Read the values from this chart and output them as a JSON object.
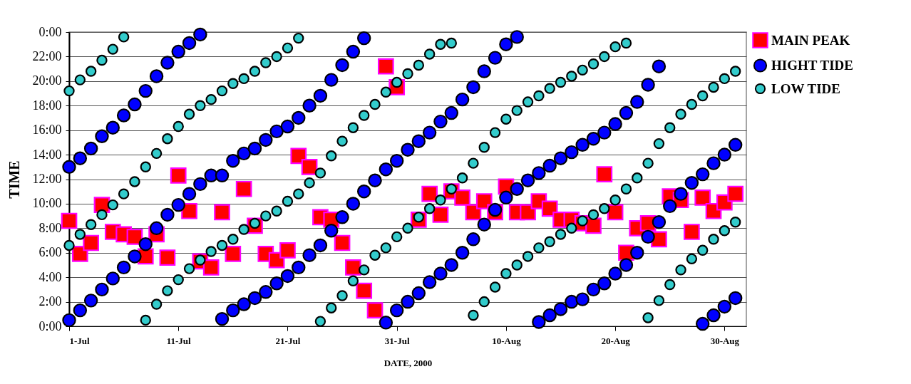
{
  "chart_data": {
    "type": "scatter",
    "xlabel": "DATE, 2000",
    "ylabel": "TIME",
    "legend": "top right",
    "grid": "y",
    "xlim": [
      "2000-07-01",
      "2000-09-01"
    ],
    "xticks": [
      {
        "value": "2000-07-01",
        "label": "1-Jul"
      },
      {
        "value": "2000-07-11",
        "label": "11-Jul"
      },
      {
        "value": "2000-07-21",
        "label": "21-Jul"
      },
      {
        "value": "2000-07-31",
        "label": "31-Jul"
      },
      {
        "value": "2000-08-10",
        "label": "10-Aug"
      },
      {
        "value": "2000-08-20",
        "label": "20-Aug"
      },
      {
        "value": "2000-08-30",
        "label": "30-Aug"
      }
    ],
    "ylim": [
      0,
      24
    ],
    "yticks": [
      {
        "value": 0,
        "label": "0:00"
      },
      {
        "value": 2,
        "label": "2:00"
      },
      {
        "value": 4,
        "label": "4:00"
      },
      {
        "value": 6,
        "label": "6:00"
      },
      {
        "value": 8,
        "label": "8:00"
      },
      {
        "value": 10,
        "label": "10:00"
      },
      {
        "value": 12,
        "label": "12:00"
      },
      {
        "value": 14,
        "label": "14:00"
      },
      {
        "value": 16,
        "label": "16:00"
      },
      {
        "value": 18,
        "label": "18:00"
      },
      {
        "value": 20,
        "label": "20:00"
      },
      {
        "value": 22,
        "label": "22:00"
      },
      {
        "value": 24,
        "label": "0:00"
      }
    ],
    "series": [
      {
        "name": "MAIN PEAK",
        "color": "#ff0000",
        "marker": "square",
        "x": [
          "2000-07-01",
          "2000-07-02",
          "2000-07-03",
          "2000-07-04",
          "2000-07-05",
          "2000-07-06",
          "2000-07-07",
          "2000-07-08",
          "2000-07-09",
          "2000-07-10",
          "2000-07-11",
          "2000-07-12",
          "2000-07-13",
          "2000-07-14",
          "2000-07-15",
          "2000-07-16",
          "2000-07-17",
          "2000-07-18",
          "2000-07-19",
          "2000-07-20",
          "2000-07-21",
          "2000-07-22",
          "2000-07-23",
          "2000-07-24",
          "2000-07-25",
          "2000-07-26",
          "2000-07-27",
          "2000-07-28",
          "2000-07-29",
          "2000-07-30",
          "2000-07-31",
          "2000-08-02",
          "2000-08-03",
          "2000-08-04",
          "2000-08-05",
          "2000-08-06",
          "2000-08-07",
          "2000-08-08",
          "2000-08-09",
          "2000-08-10",
          "2000-08-11",
          "2000-08-12",
          "2000-08-13",
          "2000-08-14",
          "2000-08-15",
          "2000-08-16",
          "2000-08-17",
          "2000-08-18",
          "2000-08-19",
          "2000-08-20",
          "2000-08-21",
          "2000-08-22",
          "2000-08-23",
          "2000-08-24",
          "2000-08-25",
          "2000-08-26",
          "2000-08-27",
          "2000-08-28",
          "2000-08-29",
          "2000-08-30",
          "2000-08-31"
        ],
        "values": [
          8.6,
          5.9,
          6.8,
          9.9,
          7.7,
          7.5,
          7.3,
          5.7,
          7.5,
          5.6,
          12.3,
          9.4,
          5.3,
          4.8,
          9.3,
          5.9,
          11.2,
          8.2,
          5.9,
          5.4,
          6.2,
          13.9,
          13.0,
          8.9,
          8.7,
          6.8,
          4.8,
          2.9,
          1.3,
          21.2,
          19.5,
          8.7,
          10.8,
          9.1,
          11.0,
          10.5,
          9.3,
          10.2,
          9.3,
          11.4,
          9.3,
          9.3,
          10.2,
          9.6,
          8.7,
          8.7,
          8.4,
          8.2,
          12.4,
          9.3,
          6.0,
          8.0,
          8.4,
          7.1,
          10.6,
          10.3,
          7.7,
          10.5,
          9.4,
          10.1,
          10.8
        ]
      },
      {
        "name": "HIGHT TIDE",
        "color": "#0000ff",
        "marker": "circle",
        "x": [
          "2000-07-01",
          "2000-07-02",
          "2000-07-03",
          "2000-07-04",
          "2000-07-05",
          "2000-07-06",
          "2000-07-07",
          "2000-07-08",
          "2000-07-09",
          "2000-07-10",
          "2000-07-11",
          "2000-07-12",
          "2000-07-13",
          "2000-07-14",
          "2000-07-15",
          "2000-07-16",
          "2000-07-17",
          "2000-07-18",
          "2000-07-19",
          "2000-07-20",
          "2000-07-21",
          "2000-07-22",
          "2000-07-23",
          "2000-07-24",
          "2000-07-25",
          "2000-07-26",
          "2000-07-27",
          "2000-07-28",
          "2000-07-01",
          "2000-07-02",
          "2000-07-03",
          "2000-07-04",
          "2000-07-05",
          "2000-07-06",
          "2000-07-07",
          "2000-07-08",
          "2000-07-09",
          "2000-07-10",
          "2000-07-11",
          "2000-07-12",
          "2000-07-13",
          "2000-07-15",
          "2000-07-16",
          "2000-07-17",
          "2000-07-18",
          "2000-07-19",
          "2000-07-20",
          "2000-07-21",
          "2000-07-22",
          "2000-07-23",
          "2000-07-24",
          "2000-07-25",
          "2000-07-26",
          "2000-07-27",
          "2000-07-28",
          "2000-07-29",
          "2000-07-30",
          "2000-07-31",
          "2000-08-01",
          "2000-08-02",
          "2000-08-03",
          "2000-08-04",
          "2000-08-05",
          "2000-08-06",
          "2000-08-07",
          "2000-08-08",
          "2000-08-09",
          "2000-08-10",
          "2000-08-11",
          "2000-07-30",
          "2000-07-31",
          "2000-08-01",
          "2000-08-02",
          "2000-08-03",
          "2000-08-04",
          "2000-08-05",
          "2000-08-06",
          "2000-08-07",
          "2000-08-08",
          "2000-08-09",
          "2000-08-10",
          "2000-08-11",
          "2000-08-12",
          "2000-08-13",
          "2000-08-14",
          "2000-08-15",
          "2000-08-16",
          "2000-08-17",
          "2000-08-18",
          "2000-08-19",
          "2000-08-20",
          "2000-08-21",
          "2000-08-22",
          "2000-08-23",
          "2000-08-24",
          "2000-08-13",
          "2000-08-14",
          "2000-08-15",
          "2000-08-16",
          "2000-08-17",
          "2000-08-18",
          "2000-08-19",
          "2000-08-20",
          "2000-08-21",
          "2000-08-22",
          "2000-08-23",
          "2000-08-24",
          "2000-08-25",
          "2000-08-26",
          "2000-08-27",
          "2000-08-28",
          "2000-08-29",
          "2000-08-30",
          "2000-08-31",
          "2000-08-28",
          "2000-08-29",
          "2000-08-30",
          "2000-08-31"
        ],
        "values": [
          0.5,
          1.3,
          2.1,
          3.0,
          3.9,
          4.8,
          5.7,
          6.7,
          8.0,
          9.1,
          9.9,
          10.8,
          11.6,
          12.3,
          12.3,
          13.5,
          14.1,
          14.5,
          15.2,
          15.9,
          16.3,
          17.0,
          18.0,
          18.8,
          20.1,
          21.3,
          22.4,
          23.5,
          13.0,
          13.7,
          14.5,
          15.5,
          16.2,
          17.2,
          18.1,
          19.2,
          20.4,
          21.5,
          22.4,
          23.1,
          23.8,
          0.6,
          1.3,
          1.8,
          2.3,
          2.8,
          3.5,
          4.1,
          4.8,
          5.8,
          6.6,
          7.8,
          8.9,
          10.0,
          11.0,
          11.9,
          12.8,
          13.5,
          14.4,
          15.1,
          15.8,
          16.7,
          17.4,
          18.5,
          19.5,
          20.8,
          21.9,
          23.0,
          23.6,
          0.3,
          1.3,
          2.0,
          2.7,
          3.6,
          4.3,
          5.0,
          6.0,
          7.1,
          8.3,
          9.5,
          10.5,
          11.2,
          11.9,
          12.5,
          13.1,
          13.7,
          14.2,
          14.8,
          15.3,
          15.8,
          16.5,
          17.4,
          18.3,
          19.7,
          21.2,
          0.35,
          0.9,
          1.4,
          2.0,
          2.2,
          3.0,
          3.5,
          4.3,
          5.0,
          6.0,
          7.3,
          8.5,
          9.8,
          10.8,
          11.7,
          12.4,
          13.3,
          14.0,
          14.8,
          0.2,
          0.9,
          1.6,
          2.3
        ]
      },
      {
        "name": "LOW TIDE",
        "color": "#33cccc",
        "marker": "circle",
        "x": [
          "2000-07-01",
          "2000-07-02",
          "2000-07-03",
          "2000-07-04",
          "2000-07-05",
          "2000-07-06",
          "2000-07-01",
          "2000-07-02",
          "2000-07-03",
          "2000-07-04",
          "2000-07-05",
          "2000-07-06",
          "2000-07-07",
          "2000-07-08",
          "2000-07-09",
          "2000-07-10",
          "2000-07-11",
          "2000-07-12",
          "2000-07-13",
          "2000-07-14",
          "2000-07-15",
          "2000-07-16",
          "2000-07-17",
          "2000-07-18",
          "2000-07-19",
          "2000-07-20",
          "2000-07-21",
          "2000-07-22",
          "2000-07-08",
          "2000-07-09",
          "2000-07-10",
          "2000-07-11",
          "2000-07-12",
          "2000-07-13",
          "2000-07-14",
          "2000-07-15",
          "2000-07-16",
          "2000-07-17",
          "2000-07-18",
          "2000-07-19",
          "2000-07-20",
          "2000-07-21",
          "2000-07-22",
          "2000-07-23",
          "2000-07-24",
          "2000-07-25",
          "2000-07-26",
          "2000-07-27",
          "2000-07-28",
          "2000-07-29",
          "2000-07-30",
          "2000-07-31",
          "2000-08-01",
          "2000-08-02",
          "2000-08-03",
          "2000-08-04",
          "2000-08-05",
          "2000-07-24",
          "2000-07-25",
          "2000-07-26",
          "2000-07-27",
          "2000-07-28",
          "2000-07-29",
          "2000-07-30",
          "2000-07-31",
          "2000-08-01",
          "2000-08-02",
          "2000-08-03",
          "2000-08-04",
          "2000-08-05",
          "2000-08-06",
          "2000-08-07",
          "2000-08-08",
          "2000-08-09",
          "2000-08-10",
          "2000-08-11",
          "2000-08-12",
          "2000-08-13",
          "2000-08-14",
          "2000-08-15",
          "2000-08-16",
          "2000-08-17",
          "2000-08-18",
          "2000-08-19",
          "2000-08-20",
          "2000-08-21",
          "2000-08-07",
          "2000-08-08",
          "2000-08-09",
          "2000-08-10",
          "2000-08-11",
          "2000-08-12",
          "2000-08-13",
          "2000-08-14",
          "2000-08-15",
          "2000-08-16",
          "2000-08-17",
          "2000-08-18",
          "2000-08-19",
          "2000-08-20",
          "2000-08-21",
          "2000-08-22",
          "2000-08-23",
          "2000-08-24",
          "2000-08-25",
          "2000-08-26",
          "2000-08-27",
          "2000-08-28",
          "2000-08-29",
          "2000-08-30",
          "2000-08-31",
          "2000-08-23",
          "2000-08-24",
          "2000-08-25",
          "2000-08-26",
          "2000-08-27",
          "2000-08-28",
          "2000-08-29",
          "2000-08-30",
          "2000-08-31"
        ],
        "values": [
          19.2,
          20.1,
          20.8,
          21.7,
          22.6,
          23.6,
          6.6,
          7.5,
          8.3,
          9.1,
          9.9,
          10.8,
          11.8,
          13.0,
          14.1,
          15.3,
          16.3,
          17.3,
          18.0,
          18.5,
          19.2,
          19.8,
          20.2,
          20.8,
          21.5,
          22.0,
          22.7,
          23.5,
          0.5,
          1.8,
          2.9,
          3.8,
          4.7,
          5.4,
          6.1,
          6.6,
          7.1,
          7.9,
          8.4,
          9.0,
          9.4,
          10.2,
          10.8,
          11.7,
          12.5,
          13.9,
          15.1,
          16.2,
          17.2,
          18.1,
          19.1,
          19.9,
          20.6,
          21.3,
          22.2,
          23.0,
          23.1,
          0.4,
          1.5,
          2.5,
          3.7,
          4.6,
          5.8,
          6.4,
          7.3,
          8.0,
          8.9,
          9.6,
          10.3,
          11.2,
          12.1,
          13.3,
          14.6,
          15.8,
          16.9,
          17.6,
          18.3,
          18.8,
          19.4,
          19.9,
          20.4,
          20.9,
          21.4,
          22.0,
          22.8,
          23.1,
          0.9,
          2.0,
          3.2,
          4.3,
          5.0,
          5.7,
          6.4,
          6.9,
          7.5,
          8.0,
          8.6,
          9.1,
          9.6,
          10.3,
          11.2,
          12.1,
          13.3,
          14.9,
          16.2,
          17.3,
          18.1,
          18.8,
          19.5,
          20.2,
          20.8,
          0.7,
          2.1,
          3.4,
          4.6,
          5.5,
          6.2,
          7.1,
          7.8,
          8.5
        ]
      }
    ]
  }
}
